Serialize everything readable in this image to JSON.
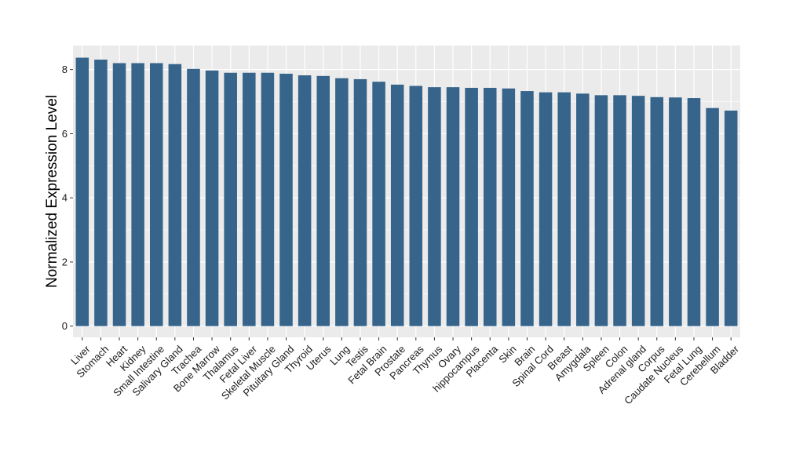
{
  "chart_data": {
    "type": "bar",
    "title": "",
    "xlabel": "",
    "ylabel": "Normalized Expression Level",
    "ylim": [
      -0.35,
      8.75
    ],
    "yticks": [
      0,
      2,
      4,
      6,
      8
    ],
    "grid": true,
    "bar_color": "#36648b",
    "panel_color": "#ebebeb",
    "grid_color": "#ffffff",
    "categories": [
      "Liver",
      "Stomach",
      "Heart",
      "Kidney",
      "Small Intestine",
      "Salivary Gland",
      "Trachea",
      "Bone Marrow",
      "Thalamus",
      "Fetal Liver",
      "Skeletal Muscle",
      "Pituitary Gland",
      "Thyroid",
      "Uterus",
      "Lung",
      "Testis",
      "Fetal Brain",
      "Prostate",
      "Pancreas",
      "Thymus",
      "Ovary",
      "hippocampus",
      "Placenta",
      "Skin",
      "Brain",
      "Spinal Cord",
      "Breast",
      "Amygdala",
      "Spleen",
      "Colon",
      "Adrenal gland",
      "Corpus",
      "Caudate Nucleus",
      "Fetal Lung",
      "Cerebellum",
      "Bladder"
    ],
    "values": [
      8.37,
      8.31,
      8.2,
      8.2,
      8.2,
      8.17,
      8.02,
      7.97,
      7.9,
      7.9,
      7.9,
      7.87,
      7.82,
      7.8,
      7.73,
      7.7,
      7.62,
      7.53,
      7.49,
      7.45,
      7.45,
      7.43,
      7.43,
      7.41,
      7.33,
      7.29,
      7.29,
      7.25,
      7.2,
      7.2,
      7.18,
      7.14,
      7.13,
      7.11,
      6.8,
      6.72
    ]
  }
}
